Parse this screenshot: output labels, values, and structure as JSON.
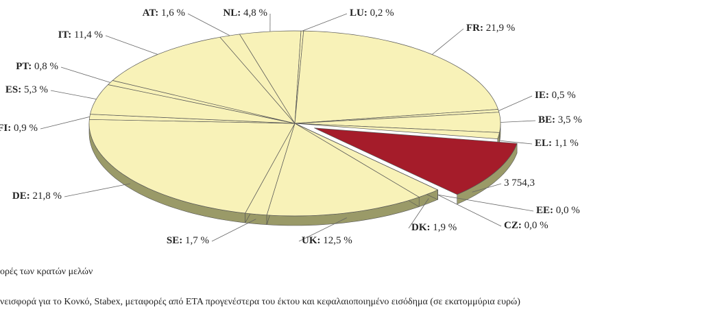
{
  "chart_data": {
    "type": "pie3d",
    "categories": [
      "EE:",
      "CZ:",
      "DK:",
      "UK:",
      "SE:",
      "DE:",
      "FI:",
      "ES:",
      "PT:",
      "IT:",
      "AT:",
      "NL:",
      "LU:",
      "FR:",
      "IE:",
      "BE:",
      "EL:"
    ],
    "values": [
      0.0,
      0.0,
      1.9,
      12.5,
      1.7,
      21.8,
      0.9,
      5.3,
      0.8,
      11.4,
      1.6,
      4.8,
      0.2,
      21.9,
      0.5,
      3.5,
      1.1
    ],
    "value_labels": [
      "0,0 %",
      "0,0 %",
      "1,9 %",
      "12,5 %",
      "1,7 %",
      "21,8 %",
      "0,9 %",
      "5,3 %",
      "0,8 %",
      "11,4 %",
      "1,6 %",
      "4,8 %",
      "0,2 %",
      "21,9 %",
      "0,5 %",
      "3,5 %",
      "1,1 %"
    ],
    "color": "#f8f2b8",
    "exploded": {
      "label": "3 754,3",
      "share": 10.1,
      "color": "#a51c2a"
    },
    "notes": [
      "ορές των κρατών μελών",
      "νεισφορά για το Κονκό, Stabex, μεταφορές από ΕΤΑ προγενέστερα του έκτου και κεφαλαιοποιημένο εισόδημα (σε εκατομμύρια ευρώ)"
    ]
  }
}
